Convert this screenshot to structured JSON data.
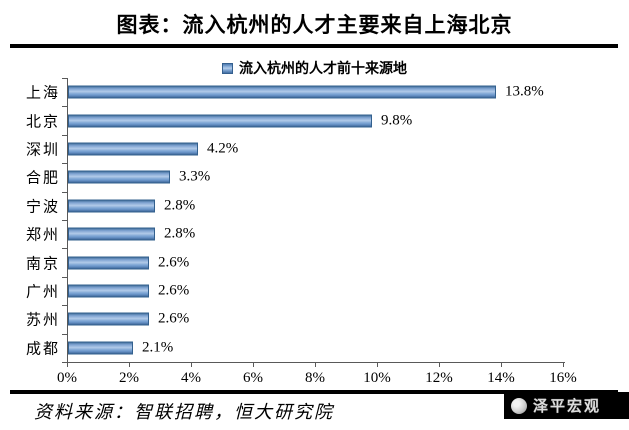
{
  "header": {
    "title": "图表：流入杭州的人才主要来自上海北京"
  },
  "legend": {
    "label": "流入杭州的人才前十来源地",
    "marker_color": "#6f9bd1"
  },
  "chart_data": {
    "type": "bar",
    "orientation": "horizontal",
    "title": "流入杭州的人才前十来源地",
    "categories": [
      "上海",
      "北京",
      "深圳",
      "合肥",
      "宁波",
      "郑州",
      "南京",
      "广州",
      "苏州",
      "成都"
    ],
    "values": [
      13.8,
      9.8,
      4.2,
      3.3,
      2.8,
      2.8,
      2.6,
      2.6,
      2.6,
      2.1
    ],
    "value_labels": [
      "13.8%",
      "9.8%",
      "4.2%",
      "3.3%",
      "2.8%",
      "2.8%",
      "2.6%",
      "2.6%",
      "2.6%",
      "2.1%"
    ],
    "xlabel": "",
    "ylabel": "",
    "xlim": [
      0,
      16
    ],
    "x_tick_labels": [
      "0%",
      "2%",
      "4%",
      "6%",
      "8%",
      "10%",
      "12%",
      "14%",
      "16%"
    ],
    "grid": false,
    "legend_position": "top",
    "bar_color": "#6f9bd1"
  },
  "footer": {
    "source": "资料来源：智联招聘，恒大研究院",
    "watermark": "泽平宏观"
  }
}
